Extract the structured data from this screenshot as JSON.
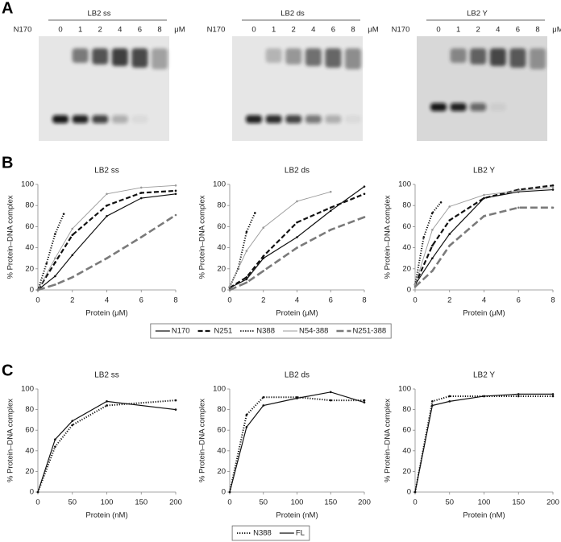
{
  "panel_labels": [
    "A",
    "B",
    "C"
  ],
  "gels": [
    {
      "title": "LB2 ss",
      "protein": "N170",
      "lanes": [
        0,
        1,
        2,
        4,
        6,
        8
      ],
      "unit": "μM"
    },
    {
      "title": "LB2 ds",
      "protein": "N170",
      "lanes": [
        0,
        1,
        2,
        4,
        6,
        8
      ],
      "unit": "μM"
    },
    {
      "title": "LB2 Y",
      "protein": "N170",
      "lanes": [
        0,
        1,
        2,
        4,
        6,
        8
      ],
      "unit": "μM"
    }
  ],
  "chart_data": [
    {
      "type": "line",
      "title": "LB2 ss",
      "xlabel": "Protein (μM)",
      "ylabel": "% Protein–DNA complex",
      "xlim": [
        0,
        8
      ],
      "ylim": [
        0,
        100
      ],
      "xticks": [
        0,
        2,
        4,
        6,
        8
      ],
      "yticks": [
        0,
        20,
        40,
        60,
        80,
        100
      ],
      "grid": false,
      "legend": "bottom",
      "series": [
        {
          "name": "N170",
          "color": "#111111",
          "style": "solid",
          "x": [
            0,
            1,
            2,
            4,
            6,
            8
          ],
          "values": [
            0,
            13,
            33,
            70,
            87,
            91
          ]
        },
        {
          "name": "N251",
          "color": "#111111",
          "style": "dashed",
          "x": [
            0,
            1,
            2,
            4,
            6,
            8
          ],
          "values": [
            0,
            26,
            52,
            80,
            92,
            94
          ]
        },
        {
          "name": "N388",
          "color": "#111111",
          "style": "dotted",
          "x": [
            0,
            0.5,
            1,
            1.5
          ],
          "values": [
            0,
            25,
            53,
            72
          ]
        },
        {
          "name": "N54-388",
          "color": "#9a9a9a",
          "style": "thin",
          "x": [
            0,
            1,
            2,
            4,
            6,
            8
          ],
          "values": [
            0,
            30,
            58,
            91,
            97,
            99
          ]
        },
        {
          "name": "N251-388",
          "color": "#7a7a7a",
          "style": "long-dashed",
          "x": [
            0,
            1,
            2,
            4,
            6,
            8
          ],
          "values": [
            0,
            5,
            12,
            30,
            50,
            71
          ]
        }
      ]
    },
    {
      "type": "line",
      "title": "LB2 ds",
      "xlabel": "Protein (μM)",
      "ylabel": "% Protein–DNA complex",
      "xlim": [
        0,
        8
      ],
      "ylim": [
        0,
        100
      ],
      "xticks": [
        0,
        2,
        4,
        6,
        8
      ],
      "yticks": [
        0,
        20,
        40,
        60,
        80,
        100
      ],
      "grid": false,
      "series": [
        {
          "name": "N170",
          "color": "#111111",
          "style": "solid",
          "x": [
            0,
            1,
            2,
            4,
            6,
            8
          ],
          "values": [
            2,
            10,
            30,
            50,
            75,
            98
          ]
        },
        {
          "name": "N251",
          "color": "#111111",
          "style": "dashed",
          "x": [
            0,
            1,
            2,
            4,
            6,
            8
          ],
          "values": [
            2,
            12,
            32,
            64,
            78,
            91
          ]
        },
        {
          "name": "N388",
          "color": "#111111",
          "style": "dotted",
          "x": [
            0,
            0.5,
            1,
            1.5
          ],
          "values": [
            3,
            20,
            55,
            73
          ]
        },
        {
          "name": "N54-388",
          "color": "#9a9a9a",
          "style": "thin",
          "x": [
            0,
            1,
            2,
            4,
            6
          ],
          "values": [
            3,
            37,
            59,
            84,
            93
          ]
        },
        {
          "name": "N251-388",
          "color": "#7a7a7a",
          "style": "long-dashed",
          "x": [
            0,
            1,
            2,
            4,
            6,
            8
          ],
          "values": [
            0,
            7,
            18,
            40,
            57,
            69
          ]
        }
      ]
    },
    {
      "type": "line",
      "title": "LB2 Y",
      "xlabel": "Protein (μM)",
      "ylabel": "% Protein–DNA complex",
      "xlim": [
        0,
        8
      ],
      "ylim": [
        0,
        100
      ],
      "xticks": [
        0,
        2,
        4,
        6,
        8
      ],
      "yticks": [
        0,
        20,
        40,
        60,
        80,
        100
      ],
      "grid": false,
      "series": [
        {
          "name": "N170",
          "color": "#111111",
          "style": "solid",
          "x": [
            0,
            1,
            2,
            4,
            6,
            8
          ],
          "values": [
            5,
            30,
            53,
            87,
            93,
            95
          ]
        },
        {
          "name": "N251",
          "color": "#111111",
          "style": "dashed",
          "x": [
            0,
            1,
            2,
            4,
            6,
            8
          ],
          "values": [
            5,
            42,
            66,
            87,
            95,
            99
          ]
        },
        {
          "name": "N388",
          "color": "#111111",
          "style": "dotted",
          "x": [
            0,
            0.5,
            1,
            1.5
          ],
          "values": [
            5,
            50,
            73,
            83
          ]
        },
        {
          "name": "N54-388",
          "color": "#9a9a9a",
          "style": "thin",
          "x": [
            0,
            1,
            2,
            4,
            6,
            8
          ],
          "values": [
            5,
            57,
            79,
            90,
            94,
            97
          ]
        },
        {
          "name": "N251-388",
          "color": "#7a7a7a",
          "style": "long-dashed",
          "x": [
            0,
            1,
            2,
            4,
            6,
            8
          ],
          "values": [
            3,
            18,
            42,
            70,
            78,
            78
          ]
        }
      ]
    },
    {
      "type": "line",
      "title": "LB2 ss",
      "xlabel": "Protein (nM)",
      "ylabel": "% Protein–DNA complex",
      "xlim": [
        0,
        200
      ],
      "ylim": [
        0,
        100
      ],
      "xticks": [
        0,
        50,
        100,
        150,
        200
      ],
      "yticks": [
        0,
        20,
        40,
        60,
        80,
        100
      ],
      "grid": false,
      "legend": "bottom",
      "series": [
        {
          "name": "N388",
          "color": "#111111",
          "style": "dotted",
          "x": [
            0,
            25,
            50,
            100,
            200
          ],
          "values": [
            0,
            44,
            65,
            84,
            89
          ]
        },
        {
          "name": "FL",
          "color": "#111111",
          "style": "solid",
          "x": [
            0,
            25,
            50,
            100,
            200
          ],
          "values": [
            0,
            51,
            69,
            88,
            80
          ]
        }
      ]
    },
    {
      "type": "line",
      "title": "LB2 ds",
      "xlabel": "Protein (nM)",
      "ylabel": "% Protein–DNA complex",
      "xlim": [
        0,
        200
      ],
      "ylim": [
        0,
        100
      ],
      "xticks": [
        0,
        50,
        100,
        150,
        200
      ],
      "yticks": [
        0,
        20,
        40,
        60,
        80,
        100
      ],
      "grid": false,
      "series": [
        {
          "name": "N388",
          "color": "#111111",
          "style": "dotted",
          "x": [
            0,
            25,
            50,
            100,
            150,
            200
          ],
          "values": [
            0,
            75,
            92,
            92,
            89,
            89
          ]
        },
        {
          "name": "FL",
          "color": "#111111",
          "style": "solid",
          "x": [
            0,
            25,
            50,
            100,
            150,
            200
          ],
          "values": [
            0,
            63,
            84,
            91,
            97,
            87
          ]
        }
      ]
    },
    {
      "type": "line",
      "title": "LB2 Y",
      "xlabel": "Protein (nM)",
      "ylabel": "% Protein–DNA complex",
      "xlim": [
        0,
        200
      ],
      "ylim": [
        0,
        100
      ],
      "xticks": [
        0,
        50,
        100,
        150,
        200
      ],
      "yticks": [
        0,
        20,
        40,
        60,
        80,
        100
      ],
      "grid": false,
      "series": [
        {
          "name": "N388",
          "color": "#111111",
          "style": "dotted",
          "x": [
            0,
            25,
            50,
            100,
            150,
            200
          ],
          "values": [
            0,
            88,
            93,
            93,
            93,
            93
          ]
        },
        {
          "name": "FL",
          "color": "#111111",
          "style": "solid",
          "x": [
            0,
            25,
            50,
            100,
            150,
            200
          ],
          "values": [
            0,
            84,
            88,
            93,
            95,
            95
          ]
        }
      ]
    }
  ]
}
